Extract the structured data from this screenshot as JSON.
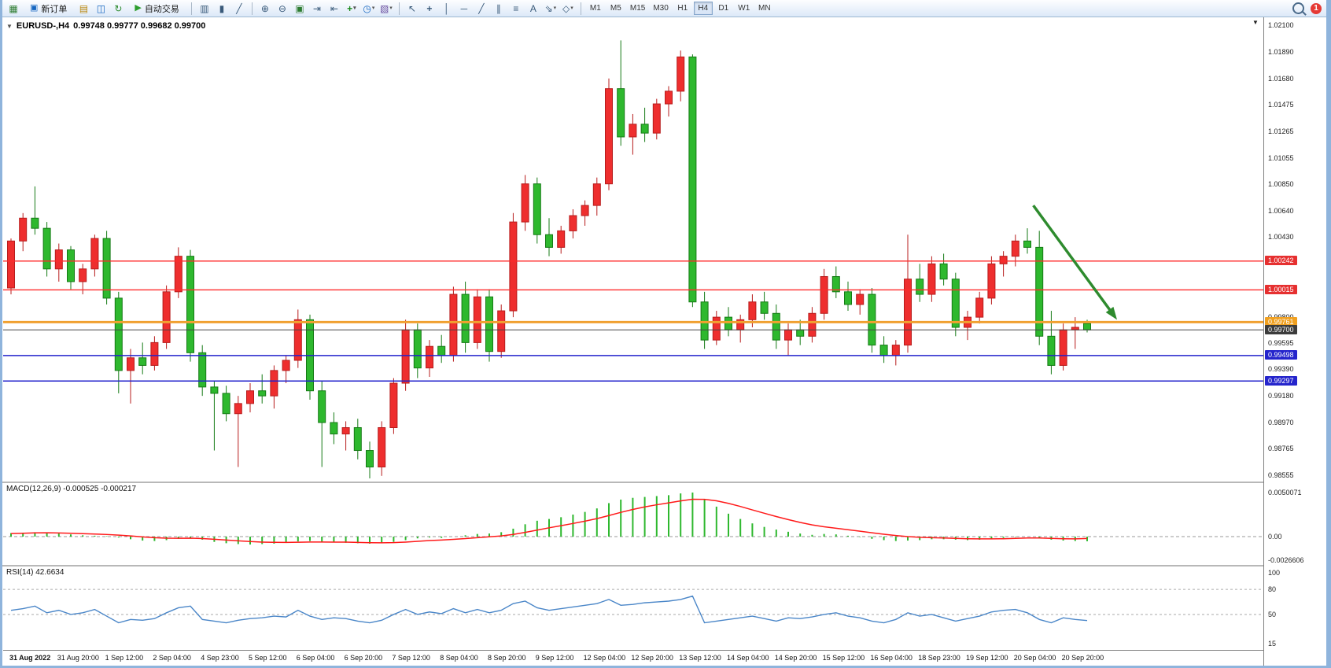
{
  "toolbar": {
    "new_order_label": "新订单",
    "auto_trading_label": "自动交易",
    "notification_count": "1",
    "timeframes": [
      "M1",
      "M5",
      "M15",
      "M30",
      "H1",
      "H4",
      "D1",
      "W1",
      "MN"
    ],
    "active_timeframe": "H4",
    "icon_groups": {
      "main": [
        "new-chart-icon"
      ],
      "acct": [
        "profiles-icon",
        "market-watch-icon",
        "refresh-icon"
      ],
      "charttype": [
        "bar-chart-icon",
        "candlestick-icon",
        "line-chart-icon"
      ],
      "zoom": [
        "zoom-in-icon",
        "zoom-out-icon"
      ],
      "manage": [
        "tile-windows-icon",
        "auto-scroll-icon",
        "chart-shift-icon",
        "indicators-icon",
        "periods-icon",
        "templates-icon"
      ],
      "draw": [
        "cursor-icon",
        "crosshair-icon",
        "vertical-line-icon",
        "horizontal-line-icon",
        "trendline-icon",
        "channel-icon",
        "fibonacci-icon",
        "text-icon",
        "arrows-icon",
        "shapes-icon"
      ]
    }
  },
  "chart_header": {
    "symbol": "EURUSD-,H4",
    "ohlc": "0.99748 0.99777 0.99682 0.99700"
  },
  "price_axis": {
    "labels": [
      "1.02100",
      "1.01890",
      "1.01680",
      "1.01475",
      "1.01265",
      "1.01055",
      "1.00850",
      "1.00640",
      "1.00430",
      "0.99800",
      "0.99595",
      "0.99390",
      "0.99180",
      "0.98970",
      "0.98765",
      "0.98555"
    ],
    "badges": [
      {
        "value": "1.00242",
        "price": 1.00242,
        "color": "#e63030",
        "type": "resistance"
      },
      {
        "value": "1.00015",
        "price": 1.00015,
        "color": "#e63030",
        "type": "resistance"
      },
      {
        "value": "0.99761",
        "price": 0.99761,
        "color": "#f0a020",
        "type": "pivot"
      },
      {
        "value": "0.99700",
        "price": 0.997,
        "color": "#3c3c3c",
        "type": "current-price"
      },
      {
        "value": "0.99498",
        "price": 0.99498,
        "color": "#2525cc",
        "type": "support"
      },
      {
        "value": "0.99297",
        "price": 0.99297,
        "color": "#2525cc",
        "type": "support"
      }
    ]
  },
  "indicators": {
    "macd": {
      "label": "MACD(12,26,9) -0.000525 -0.000217",
      "axis_labels": [
        "0.0050071",
        "0.00",
        "-0.0026606"
      ]
    },
    "rsi": {
      "label": "RSI(14) 42.6634",
      "axis_labels": [
        "100",
        "80",
        "50",
        "15"
      ],
      "levels": [
        80,
        50
      ]
    }
  },
  "time_axis": {
    "labels": [
      "31 Aug 2022",
      "31 Aug 20:00",
      "1 Sep 12:00",
      "2 Sep 04:00",
      "4 Sep 23:00",
      "5 Sep 12:00",
      "6 Sep 04:00",
      "6 Sep 20:00",
      "7 Sep 12:00",
      "8 Sep 04:00",
      "8 Sep 20:00",
      "9 Sep 12:00",
      "12 Sep 04:00",
      "12 Sep 20:00",
      "13 Sep 12:00",
      "14 Sep 04:00",
      "14 Sep 20:00",
      "15 Sep 12:00",
      "16 Sep 04:00",
      "18 Sep 23:00",
      "19 Sep 12:00",
      "20 Sep 04:00",
      "20 Sep 20:00"
    ]
  },
  "chart_data": {
    "type": "candlestick",
    "symbol": "EURUSD-",
    "timeframe": "H4",
    "title": "EURUSD-,H4",
    "price_axis_range": [
      0.98555,
      1.021
    ],
    "colors": {
      "bull": "#ee2e2e",
      "bull_border": "#b71c1c",
      "bear": "#2eb82e",
      "bear_border": "#157a15",
      "macd_histogram": "#2eb82e",
      "macd_signal": "#ff1a1a",
      "rsi_line": "#4a86c8",
      "arrow": "#2e8b2e",
      "resistance_line": "#ff2a2a",
      "support_line": "#2222cc",
      "pivot_line": "#f0a030",
      "current_price_line": "#444444"
    },
    "horizontal_lines": [
      {
        "name": "resistance-1",
        "price": 1.00242,
        "color_key": "resistance_line",
        "width": 1.3
      },
      {
        "name": "resistance-2",
        "price": 1.00015,
        "color_key": "resistance_line",
        "width": 1.3
      },
      {
        "name": "pivot",
        "price": 0.99761,
        "color_key": "pivot_line",
        "width": 3
      },
      {
        "name": "current-price",
        "price": 0.997,
        "color_key": "current_price_line",
        "width": 1
      },
      {
        "name": "support-1",
        "price": 0.99498,
        "color_key": "support_line",
        "width": 1.5
      },
      {
        "name": "support-2",
        "price": 0.99297,
        "color_key": "support_line",
        "width": 1.5
      }
    ],
    "candles": [
      [
        1.0003,
        1.0042,
        0.9998,
        1.004
      ],
      [
        1.004,
        1.0062,
        1.0032,
        1.0058
      ],
      [
        1.0058,
        1.0083,
        1.0045,
        1.005
      ],
      [
        1.005,
        1.0055,
        1.0012,
        1.0018
      ],
      [
        1.0018,
        1.0038,
        1.0008,
        1.0033
      ],
      [
        1.0033,
        1.0036,
        1.0002,
        1.0008
      ],
      [
        1.0008,
        1.0022,
        0.9998,
        1.0018
      ],
      [
        1.0018,
        1.0045,
        1.0012,
        1.0042
      ],
      [
        1.0042,
        1.0048,
        0.999,
        0.9995
      ],
      [
        0.9995,
        1.0,
        0.992,
        0.9938
      ],
      [
        0.9938,
        0.9955,
        0.9912,
        0.9948
      ],
      [
        0.9948,
        0.996,
        0.9935,
        0.9942
      ],
      [
        0.9942,
        0.9965,
        0.9938,
        0.996
      ],
      [
        0.996,
        1.0005,
        0.9955,
        1.0
      ],
      [
        1.0,
        1.0035,
        0.9995,
        1.0028
      ],
      [
        1.0028,
        1.0033,
        0.9945,
        0.9952
      ],
      [
        0.9952,
        0.9958,
        0.9918,
        0.9925
      ],
      [
        0.9925,
        0.993,
        0.9875,
        0.992
      ],
      [
        0.992,
        0.9926,
        0.9898,
        0.9904
      ],
      [
        0.9904,
        0.9918,
        0.9862,
        0.9912
      ],
      [
        0.9912,
        0.9928,
        0.9905,
        0.9922
      ],
      [
        0.9922,
        0.9935,
        0.9912,
        0.9918
      ],
      [
        0.9918,
        0.9942,
        0.9908,
        0.9938
      ],
      [
        0.9938,
        0.995,
        0.9928,
        0.9946
      ],
      [
        0.9946,
        0.9986,
        0.994,
        0.9978
      ],
      [
        0.9978,
        0.9982,
        0.9915,
        0.9922
      ],
      [
        0.9922,
        0.993,
        0.9862,
        0.9897
      ],
      [
        0.9897,
        0.9905,
        0.988,
        0.9888
      ],
      [
        0.9888,
        0.9898,
        0.9875,
        0.9893
      ],
      [
        0.9893,
        0.99,
        0.9868,
        0.9875
      ],
      [
        0.9875,
        0.9882,
        0.9853,
        0.9862
      ],
      [
        0.9862,
        0.9898,
        0.9855,
        0.9893
      ],
      [
        0.9893,
        0.9932,
        0.9888,
        0.9928
      ],
      [
        0.9928,
        0.9978,
        0.9922,
        0.997
      ],
      [
        0.997,
        0.9975,
        0.9932,
        0.994
      ],
      [
        0.994,
        0.9962,
        0.9933,
        0.9957
      ],
      [
        0.9957,
        0.9966,
        0.9944,
        0.995
      ],
      [
        0.995,
        1.0004,
        0.9945,
        0.9998
      ],
      [
        0.9998,
        1.0008,
        0.9952,
        0.996
      ],
      [
        0.996,
        1.0002,
        0.9955,
        0.9996
      ],
      [
        0.9996,
        1.0002,
        0.9945,
        0.9953
      ],
      [
        0.9953,
        0.999,
        0.9948,
        0.9985
      ],
      [
        0.9985,
        1.0062,
        0.998,
        1.0055
      ],
      [
        1.0055,
        1.0092,
        1.0048,
        1.0085
      ],
      [
        1.0085,
        1.009,
        1.0038,
        1.0045
      ],
      [
        1.0045,
        1.0058,
        1.0028,
        1.0035
      ],
      [
        1.0035,
        1.0052,
        1.003,
        1.0048
      ],
      [
        1.0048,
        1.0065,
        1.0042,
        1.006
      ],
      [
        1.006,
        1.0072,
        1.0052,
        1.0068
      ],
      [
        1.0068,
        1.009,
        1.006,
        1.0085
      ],
      [
        1.0085,
        1.0168,
        1.008,
        1.016
      ],
      [
        1.016,
        1.0198,
        1.0115,
        1.0122
      ],
      [
        1.0122,
        1.014,
        1.0108,
        1.0132
      ],
      [
        1.0132,
        1.0145,
        1.0118,
        1.0125
      ],
      [
        1.0125,
        1.0152,
        1.012,
        1.0148
      ],
      [
        1.0148,
        1.0162,
        1.0138,
        1.0158
      ],
      [
        1.0158,
        1.019,
        1.015,
        1.0185
      ],
      [
        1.0185,
        1.0187,
        0.9988,
        0.9992
      ],
      [
        0.9992,
        1.0,
        0.9955,
        0.9962
      ],
      [
        0.9962,
        0.9985,
        0.9958,
        0.998
      ],
      [
        0.998,
        0.9988,
        0.9965,
        0.997
      ],
      [
        0.997,
        0.9982,
        0.996,
        0.9978
      ],
      [
        0.9978,
        0.9998,
        0.9972,
        0.9992
      ],
      [
        0.9992,
        1.0,
        0.9978,
        0.9983
      ],
      [
        0.9983,
        0.999,
        0.9955,
        0.9962
      ],
      [
        0.9962,
        0.9975,
        0.995,
        0.997
      ],
      [
        0.997,
        0.9978,
        0.9958,
        0.9965
      ],
      [
        0.9965,
        0.9988,
        0.996,
        0.9983
      ],
      [
        0.9983,
        1.0018,
        0.9978,
        1.0012
      ],
      [
        1.0012,
        1.002,
        0.9995,
        1.0
      ],
      [
        1.0,
        1.0008,
        0.9985,
        0.999
      ],
      [
        0.999,
        1.0002,
        0.9982,
        0.9998
      ],
      [
        0.9998,
        1.0003,
        0.9952,
        0.9958
      ],
      [
        0.9958,
        0.9965,
        0.9944,
        0.995
      ],
      [
        0.995,
        0.9962,
        0.9942,
        0.9958
      ],
      [
        0.9958,
        1.0045,
        0.9952,
        1.001
      ],
      [
        1.001,
        1.0022,
        0.9992,
        0.9998
      ],
      [
        0.9998,
        1.0028,
        0.9992,
        1.0022
      ],
      [
        1.0022,
        1.003,
        1.0005,
        1.001
      ],
      [
        1.001,
        1.0015,
        0.9965,
        0.9972
      ],
      [
        0.9972,
        0.9985,
        0.9962,
        0.998
      ],
      [
        0.998,
        1.0,
        0.9975,
        0.9995
      ],
      [
        0.9995,
        1.0028,
        0.999,
        1.0022
      ],
      [
        1.0022,
        1.0032,
        1.0012,
        1.0028
      ],
      [
        1.0028,
        1.0045,
        1.002,
        1.004
      ],
      [
        1.004,
        1.005,
        1.003,
        1.0035
      ],
      [
        1.0035,
        1.0048,
        0.9958,
        0.9965
      ],
      [
        0.9965,
        0.9985,
        0.9935,
        0.9942
      ],
      [
        0.9942,
        0.9975,
        0.9938,
        0.997
      ],
      [
        0.997,
        0.998,
        0.9955,
        0.9972
      ],
      [
        0.9975,
        0.9978,
        0.9968,
        0.997
      ]
    ],
    "macd": {
      "histogram": [
        0.0004,
        0.00045,
        0.0005,
        0.00045,
        0.00035,
        0.00025,
        0.00015,
        0.0001,
        5e-05,
        -0.0001,
        -0.0003,
        -0.00045,
        -0.0005,
        -0.0004,
        -0.00025,
        -0.00015,
        -0.00035,
        -0.0006,
        -0.00075,
        -0.00085,
        -0.0009,
        -0.00085,
        -0.0008,
        -0.0007,
        -0.00055,
        -0.0005,
        -0.0006,
        -0.00065,
        -0.0007,
        -0.00075,
        -0.0008,
        -0.00075,
        -0.0006,
        -0.0004,
        -0.0002,
        -0.0001,
        -0.00015,
        0.0,
        0.00015,
        0.0003,
        0.00035,
        0.0005,
        0.0009,
        0.0014,
        0.0018,
        0.002,
        0.0022,
        0.0025,
        0.0028,
        0.0032,
        0.0038,
        0.0042,
        0.0044,
        0.0045,
        0.0046,
        0.0047,
        0.0049,
        0.005,
        0.0042,
        0.0034,
        0.0026,
        0.002,
        0.0015,
        0.0011,
        0.0008,
        0.00055,
        0.00035,
        0.0002,
        0.0003,
        0.00025,
        0.0001,
        -5e-05,
        -0.00025,
        -0.0004,
        -0.0005,
        -0.00045,
        -0.0004,
        -0.0003,
        -0.0003,
        -0.00035,
        -0.0004,
        -0.00035,
        -0.00025,
        -0.00015,
        -5e-05,
        0.0,
        -0.00015,
        -0.00035,
        -0.00045,
        -0.0005,
        -0.000525
      ],
      "signal": [
        0.00035,
        0.00038,
        0.00042,
        0.00043,
        0.00041,
        0.00038,
        0.00034,
        0.00029,
        0.00024,
        0.00017,
        8e-05,
        -3e-05,
        -0.00012,
        -0.00018,
        -0.00019,
        -0.00018,
        -0.00022,
        -0.0003,
        -0.00039,
        -0.00048,
        -0.00056,
        -0.00062,
        -0.00065,
        -0.00066,
        -0.00064,
        -0.00061,
        -0.00061,
        -0.00062,
        -0.00063,
        -0.00066,
        -0.00069,
        -0.0007,
        -0.00068,
        -0.00062,
        -0.00054,
        -0.00045,
        -0.00039,
        -0.00031,
        -0.00022,
        -0.00012,
        -2e-05,
        8e-05,
        0.00025,
        0.00048,
        0.00074,
        0.001,
        0.00124,
        0.00149,
        0.00175,
        0.00204,
        0.00239,
        0.00275,
        0.00308,
        0.00337,
        0.00361,
        0.00383,
        0.00405,
        0.00424,
        0.00423,
        0.00406,
        0.00377,
        0.00342,
        0.00303,
        0.00265,
        0.00228,
        0.00193,
        0.00161,
        0.00133,
        0.00112,
        0.00095,
        0.00078,
        0.00061,
        0.00044,
        0.00027,
        0.00012,
        0.0,
        -8e-05,
        -0.00012,
        -0.00016,
        -0.0002,
        -0.00024,
        -0.00026,
        -0.00026,
        -0.00024,
        -0.0002,
        -0.00016,
        -0.00016,
        -0.0002,
        -0.00024,
        -0.00026,
        -0.000217
      ]
    },
    "rsi_values": [
      55,
      57,
      60,
      52,
      55,
      50,
      52,
      56,
      48,
      40,
      44,
      43,
      45,
      52,
      58,
      60,
      44,
      42,
      40,
      43,
      45,
      46,
      48,
      47,
      55,
      48,
      44,
      46,
      45,
      42,
      40,
      43,
      50,
      56,
      50,
      53,
      51,
      57,
      52,
      56,
      52,
      55,
      63,
      66,
      58,
      55,
      57,
      59,
      61,
      63,
      68,
      61,
      62,
      64,
      65,
      66,
      68,
      72,
      40,
      42,
      44,
      46,
      48,
      45,
      42,
      46,
      45,
      47,
      50,
      52,
      48,
      46,
      42,
      40,
      44,
      52,
      48,
      50,
      46,
      42,
      45,
      48,
      53,
      55,
      56,
      52,
      44,
      40,
      46,
      44,
      42.66
    ],
    "arrow_annotation": {
      "from": {
        "bar": 85.5,
        "price": 1.0068
      },
      "to": {
        "bar": 92.5,
        "price": 0.9978
      },
      "direction": "down"
    }
  }
}
